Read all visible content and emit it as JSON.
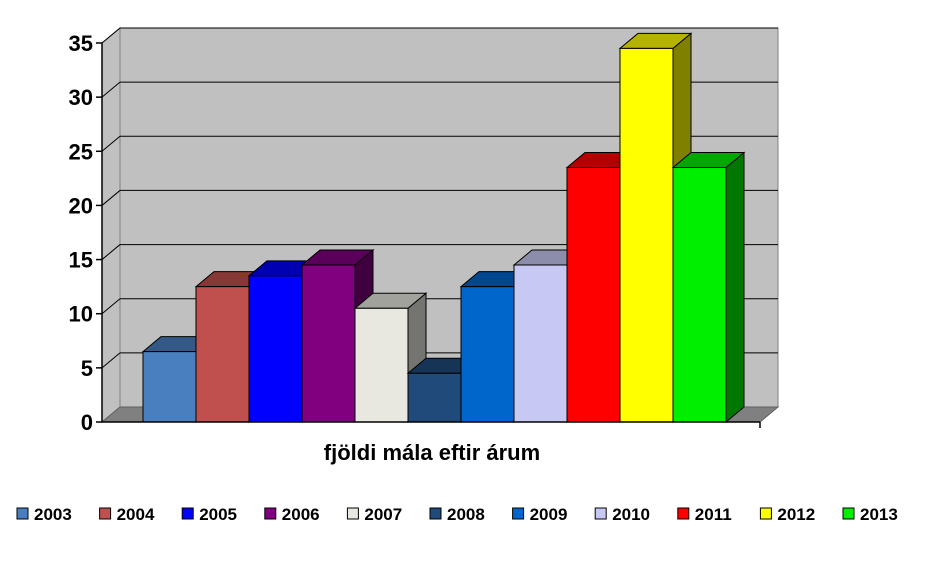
{
  "chart_data": {
    "type": "bar",
    "title": "",
    "xlabel": "fjöldi mála eftir árum",
    "ylabel": "",
    "ylim": [
      0,
      35
    ],
    "yticks": [
      0,
      5,
      10,
      15,
      20,
      25,
      30,
      35
    ],
    "grid": true,
    "legend_position": "bottom",
    "series": [
      {
        "name": "2003",
        "value": 6.5,
        "color": "#4a7fbf"
      },
      {
        "name": "2004",
        "value": 12.5,
        "color": "#c0504d"
      },
      {
        "name": "2005",
        "value": 13.5,
        "color": "#0000ff"
      },
      {
        "name": "2006",
        "value": 14.5,
        "color": "#800080"
      },
      {
        "name": "2007",
        "value": 10.5,
        "color": "#e8e8e0"
      },
      {
        "name": "2008",
        "value": 4.5,
        "color": "#1f4a7a"
      },
      {
        "name": "2009",
        "value": 12.5,
        "color": "#0066cc"
      },
      {
        "name": "2010",
        "value": 14.5,
        "color": "#c8c8f4"
      },
      {
        "name": "2011",
        "value": 23.5,
        "color": "#ff0000"
      },
      {
        "name": "2012",
        "value": 34.5,
        "color": "#ffff00"
      },
      {
        "name": "2013",
        "value": 23.5,
        "color": "#00ee00"
      }
    ]
  }
}
